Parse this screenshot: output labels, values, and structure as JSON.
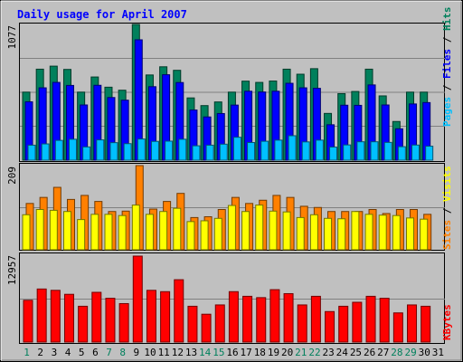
{
  "chart_data": {
    "type": "bar",
    "title": "Daily usage for April 2007",
    "categories": [
      "1",
      "2",
      "3",
      "4",
      "5",
      "6",
      "7",
      "8",
      "9",
      "10",
      "11",
      "12",
      "13",
      "14",
      "15",
      "16",
      "17",
      "18",
      "19",
      "20",
      "21",
      "22",
      "23",
      "24",
      "25",
      "26",
      "27",
      "28",
      "29",
      "30",
      "31"
    ],
    "weekend_days": [
      "1",
      "7",
      "8",
      "14",
      "15",
      "21",
      "22",
      "28",
      "29"
    ],
    "panels": [
      {
        "id": "pages",
        "ymax_label": "1077",
        "ymax": 1077,
        "legend": [
          "Hits",
          "Files",
          "Pages"
        ],
        "series": [
          {
            "name": "Hits",
            "color": "#00805c",
            "values": [
              540,
              722,
              746,
              720,
              540,
              660,
              579,
              555,
              1077,
              676,
              741,
              713,
              494,
              433,
              462,
              540,
              627,
              617,
              628,
              722,
              682,
              726,
              371,
              528,
              545,
              722,
              510,
              307,
              540,
              540,
              0
            ]
          },
          {
            "name": "Files",
            "color": "#0000ff",
            "values": [
              463,
              574,
              617,
              593,
              438,
              594,
              497,
              476,
              955,
              583,
              678,
              616,
              398,
              343,
              370,
              437,
              547,
              541,
              547,
              610,
              574,
              570,
              281,
              436,
              435,
              597,
              438,
              249,
              446,
              457,
              0
            ]
          },
          {
            "name": "Pages",
            "color": "#00c0ff",
            "values": [
              119,
              129,
              157,
              166,
              105,
              161,
              139,
              131,
              168,
              149,
              151,
              166,
              114,
              119,
              127,
              182,
              140,
              150,
              159,
              194,
              145,
              159,
              104,
              121,
              146,
              146,
              141,
              107,
              120,
              111,
              0
            ]
          }
        ]
      },
      {
        "id": "visits",
        "ymax_label": "209",
        "ymax": 209,
        "legend": [
          "Visits",
          "Sites"
        ],
        "series": [
          {
            "name": "Visits",
            "color": "#ff8000",
            "values": [
              115,
              130,
              155,
              125,
              135,
              120,
              95,
              96,
              209,
              101,
              120,
              140,
              80,
              82,
              100,
              130,
              115,
              123,
              135,
              130,
              108,
              105,
              95,
              95,
              95,
              100,
              90,
              100,
              100,
              88,
              0
            ]
          },
          {
            "name": "Sites",
            "color": "#ffff00",
            "values": [
              87,
              100,
              98,
              95,
              75,
              88,
              88,
              85,
              111,
              88,
              95,
              103,
              70,
              72,
              78,
              110,
              95,
              111,
              96,
              94,
              80,
              87,
              78,
              77,
              95,
              88,
              86,
              85,
              79,
              76,
              0
            ]
          }
        ]
      },
      {
        "id": "kbytes",
        "ymax_label": "12957",
        "ymax": 12957,
        "legend": [
          "KBytes"
        ],
        "series": [
          {
            "name": "KBytes",
            "color": "#ff0000",
            "values": [
              6300,
              8000,
              7800,
              7200,
              5400,
              7500,
              6600,
              5800,
              12957,
              7800,
              7600,
              9400,
              5400,
              4200,
              5600,
              7600,
              6900,
              6700,
              7900,
              7300,
              5600,
              6900,
              4600,
              5400,
              6000,
              6900,
              6600,
              4400,
              5600,
              5400,
              0
            ]
          }
        ]
      }
    ]
  }
}
